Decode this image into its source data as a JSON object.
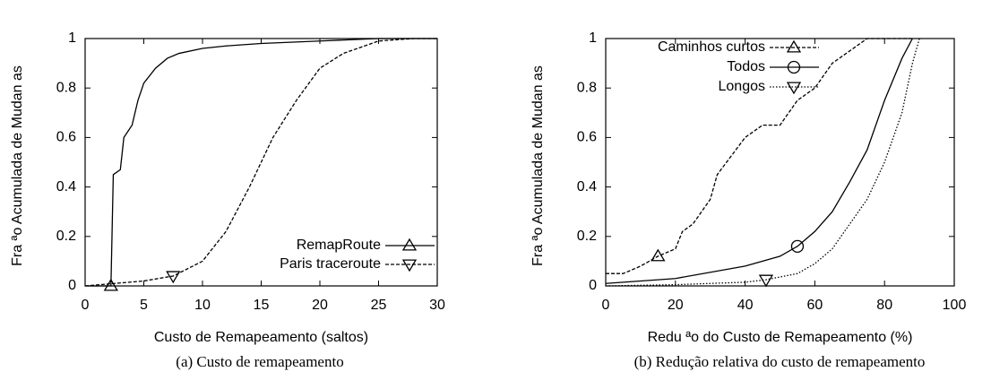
{
  "chart_data": [
    {
      "type": "line",
      "caption": "(a) Custo de remapeamento",
      "xlabel": "Custo de Remapeamento (saltos)",
      "ylabel": "Fra ªo Acumulada de Mudan as",
      "xlim": [
        0,
        30
      ],
      "xticks": [
        0,
        5,
        10,
        15,
        20,
        25,
        30
      ],
      "ylim": [
        0,
        1
      ],
      "yticks": [
        0,
        0.2,
        0.4,
        0.6,
        0.8,
        1
      ],
      "legend": "lower right",
      "series": [
        {
          "name": "RemapRoute",
          "color": "#000000",
          "dash": "solid",
          "marker": "triangle-up",
          "x": [
            0,
            2.2,
            2.4,
            3,
            3.3,
            4,
            4.5,
            5,
            6,
            7,
            8,
            10,
            12,
            15,
            20,
            25,
            30
          ],
          "values": [
            0,
            0,
            0.45,
            0.47,
            0.6,
            0.65,
            0.75,
            0.82,
            0.88,
            0.92,
            0.94,
            0.96,
            0.97,
            0.98,
            0.99,
            1,
            1
          ]
        },
        {
          "name": "Paris traceroute",
          "color": "#000000",
          "dash": "dashed",
          "marker": "triangle-down",
          "x": [
            0,
            5,
            7.5,
            10,
            12,
            14,
            16,
            18,
            20,
            22,
            25,
            28,
            30
          ],
          "values": [
            0,
            0.02,
            0.04,
            0.1,
            0.22,
            0.4,
            0.6,
            0.75,
            0.88,
            0.94,
            0.99,
            1,
            1
          ]
        }
      ]
    },
    {
      "type": "line",
      "caption": "(b) Redução relativa do custo de remapeamento",
      "xlabel": "Redu ªo do Custo de Remapeamento (%)",
      "ylabel": "Fra ªo Acumulada de Mudan as",
      "xlim": [
        0,
        100
      ],
      "xticks": [
        0,
        20,
        40,
        60,
        80,
        100
      ],
      "ylim": [
        0,
        1
      ],
      "yticks": [
        0,
        0.2,
        0.4,
        0.6,
        0.8,
        1
      ],
      "legend": "upper left",
      "series": [
        {
          "name": "Caminhos curtos",
          "color": "#000000",
          "dash": "dashed",
          "marker": "triangle-up",
          "x": [
            0,
            5,
            10,
            15,
            20,
            22,
            25,
            30,
            32,
            40,
            45,
            50,
            55,
            60,
            65,
            70,
            75,
            88
          ],
          "values": [
            0.05,
            0.05,
            0.08,
            0.12,
            0.15,
            0.22,
            0.25,
            0.35,
            0.45,
            0.6,
            0.65,
            0.65,
            0.75,
            0.8,
            0.9,
            0.95,
            1,
            1
          ]
        },
        {
          "name": "Todos",
          "color": "#000000",
          "dash": "solid",
          "marker": "circle",
          "x": [
            0,
            20,
            40,
            50,
            55,
            60,
            65,
            70,
            75,
            80,
            85,
            88
          ],
          "values": [
            0.01,
            0.03,
            0.08,
            0.12,
            0.16,
            0.22,
            0.3,
            0.42,
            0.55,
            0.75,
            0.92,
            1
          ]
        },
        {
          "name": "Longos",
          "color": "#000000",
          "dash": "dotted",
          "marker": "triangle-down",
          "x": [
            0,
            20,
            40,
            46,
            55,
            60,
            65,
            70,
            75,
            80,
            85,
            88,
            90
          ],
          "values": [
            0,
            0.005,
            0.015,
            0.025,
            0.05,
            0.09,
            0.15,
            0.25,
            0.35,
            0.5,
            0.7,
            0.9,
            1
          ]
        }
      ]
    }
  ]
}
